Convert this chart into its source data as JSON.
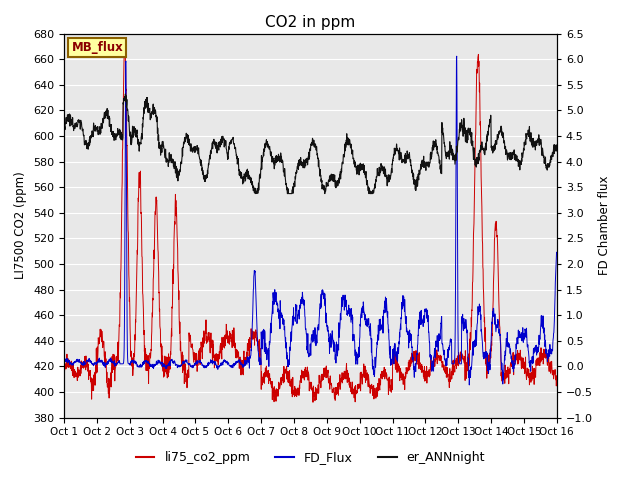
{
  "title": "CO2 in ppm",
  "ylabel_left": "LI7500 CO2 (ppm)",
  "ylabel_right": "FD Chamber flux",
  "ylim_left": [
    380,
    680
  ],
  "ylim_right": [
    -1.0,
    6.5
  ],
  "xtick_labels": [
    "Oct 1",
    "Oct 2",
    "Oct 3",
    "Oct 4",
    "Oct 5",
    "Oct 6",
    "Oct 7",
    "Oct 8",
    "Oct 9",
    "Oct 10",
    "Oct 11",
    "Oct 12",
    "Oct 13",
    "Oct 14",
    "Oct 15",
    "Oct 16"
  ],
  "color_red": "#cc0000",
  "color_blue": "#0000cc",
  "color_black": "#111111",
  "legend_labels": [
    "li75_co2_ppm",
    "FD_Flux",
    "er_ANNnight"
  ],
  "mb_flux_label": "MB_flux",
  "background_color": "#e8e8e8",
  "n_points": 2000
}
